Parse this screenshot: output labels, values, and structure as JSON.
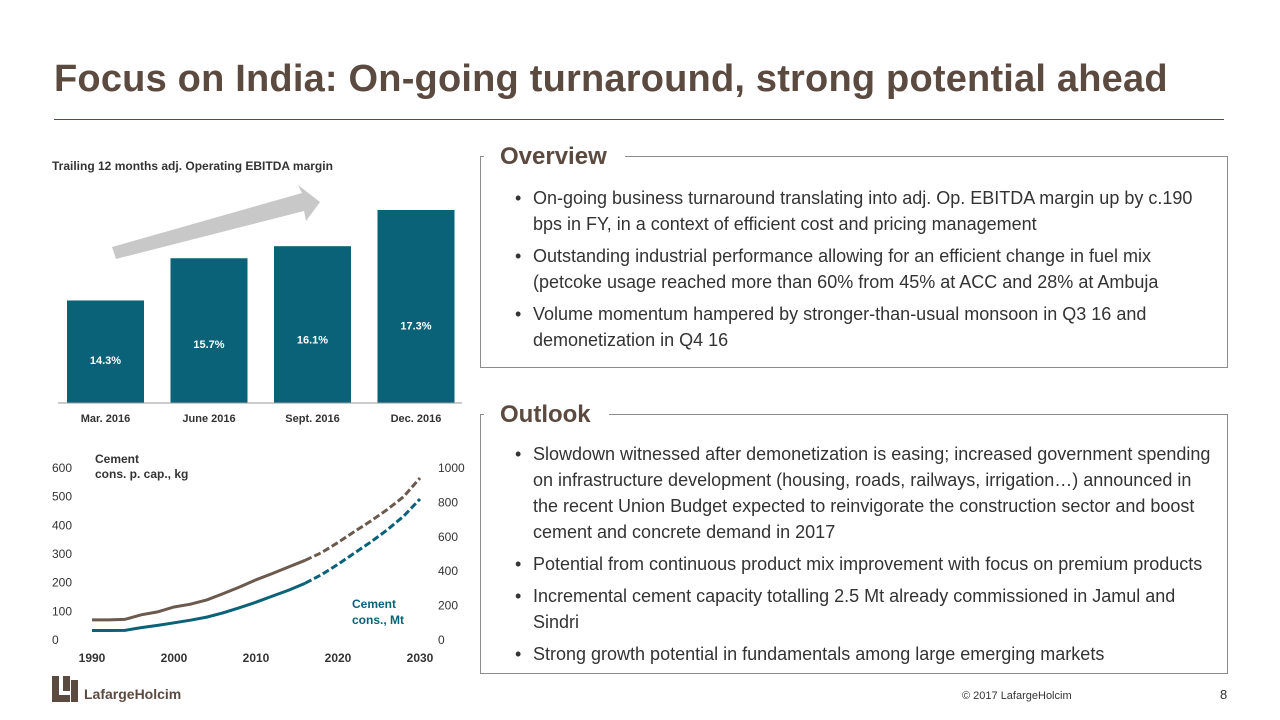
{
  "title": "Focus on India: On-going turnaround, strong potential ahead",
  "colors": {
    "brand_brown": "#5b4a3f",
    "bar_teal": "#0a6279",
    "line_brown": "#6b5a4e",
    "line_teal": "#0a6279",
    "arrow_grey": "#c8c8c8"
  },
  "ebitda_chart": {
    "heading": "Trailing 12 months adj. Operating EBITDA  margin",
    "chart_data": {
      "type": "bar",
      "title": "Trailing 12 months adj. Operating EBITDA  margin",
      "categories": [
        "Mar. 2016",
        "June 2016",
        "Sept. 2016",
        "Dec. 2016"
      ],
      "values": [
        14.3,
        15.7,
        16.1,
        17.3
      ],
      "labels": [
        "14.3%",
        "15.7%",
        "16.1%",
        "17.3%"
      ],
      "unit": "%"
    }
  },
  "cement_chart": {
    "left_axis_label_1": "Cement",
    "left_axis_label_2": "cons. p. cap., kg",
    "right_series_label_1": "Cement",
    "right_series_label_2": "cons., Mt",
    "chart_data": {
      "type": "line",
      "x_ticks": [
        "1990",
        "2000",
        "2010",
        "2020",
        "2030"
      ],
      "y_left_ticks": [
        "0",
        "100",
        "200",
        "300",
        "400",
        "500",
        "600"
      ],
      "y_right_ticks": [
        "0",
        "200",
        "400",
        "600",
        "800",
        "1000"
      ],
      "xlim": [
        1990,
        2030
      ],
      "ylim_left": [
        0,
        600
      ],
      "ylim_right": [
        0,
        1000
      ],
      "series": [
        {
          "name": "Cement cons. p. cap., kg",
          "axis": "left",
          "x": [
            1990,
            1992,
            1994,
            1996,
            1998,
            2000,
            2002,
            2004,
            2006,
            2008,
            2010,
            2012,
            2014,
            2016,
            2018,
            2020,
            2022,
            2024,
            2026,
            2028,
            2030
          ],
          "y": [
            70,
            70,
            72,
            88,
            98,
            115,
            125,
            140,
            162,
            185,
            210,
            232,
            255,
            278,
            305,
            340,
            378,
            415,
            455,
            500,
            565
          ]
        },
        {
          "name": "Cement cons., Mt",
          "axis": "right",
          "x": [
            1990,
            1992,
            1994,
            1996,
            1998,
            2000,
            2002,
            2004,
            2006,
            2008,
            2010,
            2012,
            2014,
            2016,
            2018,
            2020,
            2022,
            2024,
            2026,
            2028,
            2030
          ],
          "y": [
            55,
            55,
            56,
            72,
            85,
            100,
            115,
            133,
            158,
            188,
            220,
            255,
            290,
            330,
            380,
            440,
            505,
            570,
            640,
            720,
            820
          ]
        }
      ]
    }
  },
  "overview": {
    "title": "Overview",
    "bullets": [
      "On-going business turnaround translating into adj. Op. EBITDA margin up by c.190 bps in FY, in a context of efficient cost and pricing management",
      "Outstanding industrial performance allowing for an efficient change in fuel mix (petcoke usage reached more than 60% from 45% at ACC and 28% at Ambuja",
      "Volume momentum hampered by stronger-than-usual monsoon in Q3 16 and demonetization in Q4 16"
    ]
  },
  "outlook": {
    "title": "Outlook",
    "bullets": [
      "Slowdown witnessed after demonetization is easing; increased government spending on infrastructure development (housing, roads, railways, irrigation…) announced in the recent Union Budget expected to reinvigorate the construction sector and boost cement and concrete demand in 2017",
      "Potential from continuous product mix improvement with focus on premium products",
      "Incremental cement capacity totalling 2.5 Mt already commissioned in Jamul and Sindri",
      "Strong growth potential in fundamentals among large emerging markets"
    ]
  },
  "footer": {
    "logo_text": "LafargeHolcim",
    "copyright": "© 2017 LafargeHolcim",
    "page_number": "8"
  }
}
